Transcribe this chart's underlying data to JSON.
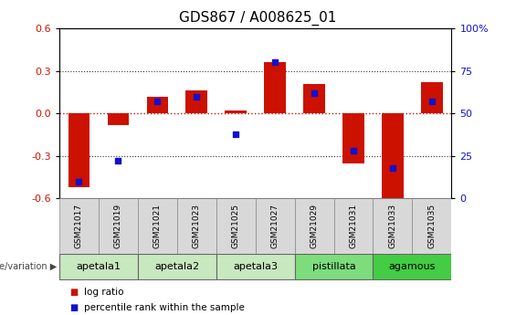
{
  "title": "GDS867 / A008625_01",
  "samples": [
    "GSM21017",
    "GSM21019",
    "GSM21021",
    "GSM21023",
    "GSM21025",
    "GSM21027",
    "GSM21029",
    "GSM21031",
    "GSM21033",
    "GSM21035"
  ],
  "log_ratio": [
    -0.52,
    -0.08,
    0.12,
    0.16,
    0.02,
    0.36,
    0.21,
    -0.35,
    -0.62,
    0.22
  ],
  "percentile_rank": [
    10,
    22,
    57,
    60,
    38,
    80,
    62,
    28,
    18,
    57
  ],
  "groups": [
    {
      "label": "apetala1",
      "samples": [
        "GSM21017",
        "GSM21019"
      ],
      "color": "#c8e8c0"
    },
    {
      "label": "apetala2",
      "samples": [
        "GSM21021",
        "GSM21023"
      ],
      "color": "#c8e8c0"
    },
    {
      "label": "apetala3",
      "samples": [
        "GSM21025",
        "GSM21027"
      ],
      "color": "#c8e8c0"
    },
    {
      "label": "pistillata",
      "samples": [
        "GSM21029",
        "GSM21031"
      ],
      "color": "#7ddd7d"
    },
    {
      "label": "agamous",
      "samples": [
        "GSM21033",
        "GSM21035"
      ],
      "color": "#44cc44"
    }
  ],
  "ylim": [
    -0.6,
    0.6
  ],
  "yticks_left": [
    -0.6,
    -0.3,
    0.0,
    0.3,
    0.6
  ],
  "yticks_right": [
    0,
    25,
    50,
    75,
    100
  ],
  "bar_color": "#cc1100",
  "dot_color": "#1111cc",
  "zero_line_color": "#cc1100",
  "grid_color": "#333333",
  "bar_width": 0.55,
  "dot_size": 22,
  "sample_box_color": "#d8d8d8",
  "sample_fontsize": 6.5,
  "group_fontsize": 8,
  "title_fontsize": 11
}
